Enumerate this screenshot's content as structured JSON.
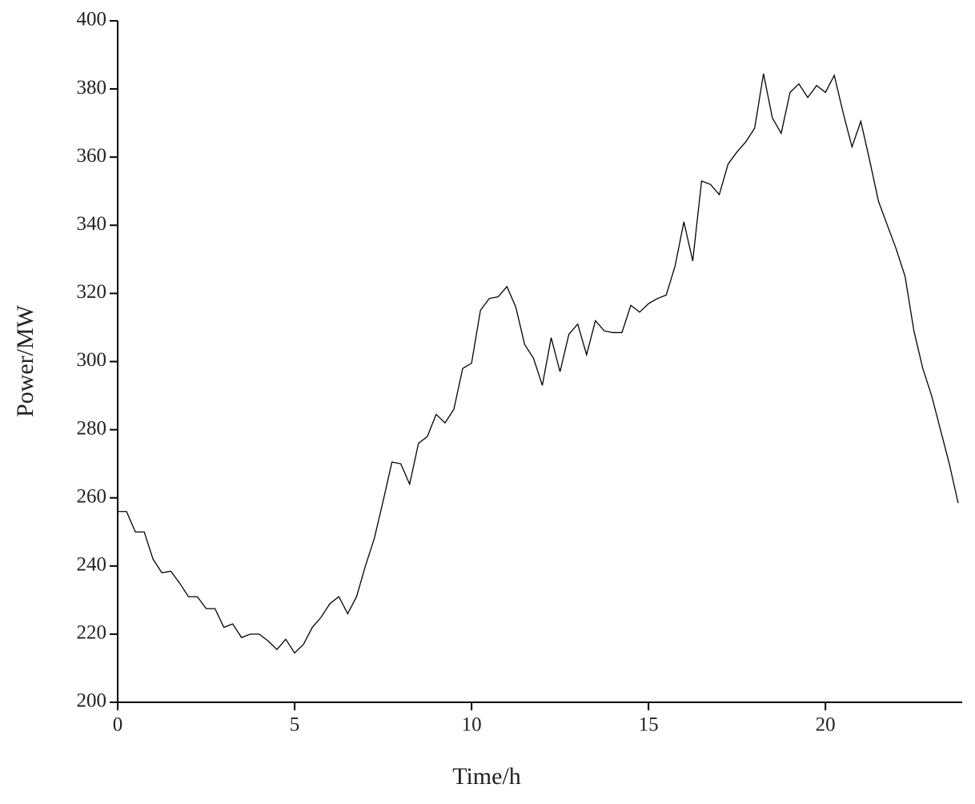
{
  "chart_data": {
    "type": "line",
    "x_label": "Time/h",
    "y_label": "Power/MW",
    "x": [
      0,
      0.25,
      0.5,
      0.75,
      1,
      1.25,
      1.5,
      1.75,
      2,
      2.25,
      2.5,
      2.75,
      3,
      3.25,
      3.5,
      3.75,
      4,
      4.25,
      4.5,
      4.75,
      5,
      5.25,
      5.5,
      5.75,
      6,
      6.25,
      6.5,
      6.75,
      7,
      7.25,
      7.5,
      7.75,
      8,
      8.25,
      8.5,
      8.75,
      9,
      9.25,
      9.5,
      9.75,
      10,
      10.25,
      10.5,
      10.75,
      11,
      11.25,
      11.5,
      11.75,
      12,
      12.25,
      12.5,
      12.75,
      13,
      13.25,
      13.5,
      13.75,
      14,
      14.25,
      14.5,
      14.75,
      15,
      15.25,
      15.5,
      15.75,
      16,
      16.25,
      16.5,
      16.75,
      17,
      17.25,
      17.5,
      17.75,
      18,
      18.25,
      18.5,
      18.75,
      19,
      19.25,
      19.5,
      19.75,
      20,
      20.25,
      20.5,
      20.75,
      21,
      21.25,
      21.5,
      21.75,
      22,
      22.25,
      22.5,
      22.75,
      23,
      23.25,
      23.5,
      23.75
    ],
    "series": [
      {
        "color": "#000000",
        "values": [
          256,
          256,
          250,
          250,
          242,
          238,
          238.5,
          235,
          231,
          231,
          227.5,
          227.5,
          222,
          223,
          219,
          220,
          220,
          218,
          215.5,
          218.5,
          214.5,
          217,
          222,
          225,
          229,
          231,
          226,
          231,
          240,
          248,
          259,
          270.5,
          270,
          264,
          276,
          278,
          284.5,
          282,
          286,
          298,
          299.5,
          315,
          318.5,
          319,
          322,
          316,
          305,
          301,
          293,
          307,
          297,
          308,
          311,
          302,
          312,
          309,
          308.5,
          308.5,
          316.5,
          314.5,
          317,
          318.5,
          319.5,
          328,
          341,
          329.5,
          353,
          352,
          349,
          358,
          361.5,
          364.5,
          368.5,
          384.5,
          371.5,
          367,
          379,
          381.5,
          377.5,
          381,
          379,
          384,
          373,
          363,
          370.5,
          359,
          347,
          340,
          333,
          325,
          309,
          298,
          290,
          280,
          270,
          258.5
        ]
      }
    ],
    "xlim": [
      0,
      24
    ],
    "xticks": [
      0,
      5,
      10,
      15,
      20
    ],
    "ylim": [
      200,
      400
    ],
    "yticks": [
      200,
      220,
      240,
      260,
      280,
      300,
      320,
      340,
      360,
      380,
      400
    ]
  }
}
